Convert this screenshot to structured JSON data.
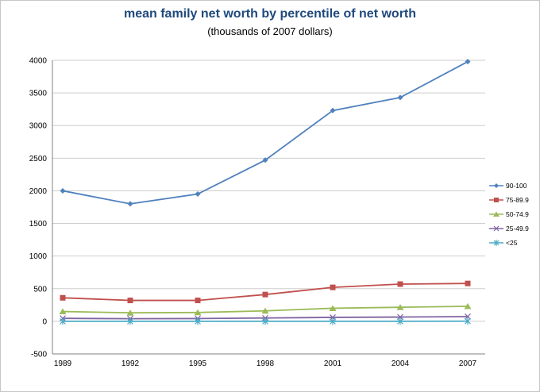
{
  "chart_data": {
    "type": "line",
    "title": "mean family net worth by percentile of net worth",
    "subtitle": "(thousands of 2007 dollars)",
    "xlabel": "",
    "ylabel": "",
    "categories": [
      "1989",
      "1992",
      "1995",
      "1998",
      "2001",
      "2004",
      "2007"
    ],
    "series": [
      {
        "name": "90-100",
        "color": "#4F81BD",
        "marker": "diamond",
        "values": [
          2000,
          1800,
          1950,
          2470,
          3230,
          3430,
          3980
        ]
      },
      {
        "name": "75-89.9",
        "color": "#C0504D",
        "marker": "square",
        "values": [
          360,
          320,
          320,
          410,
          520,
          570,
          580
        ]
      },
      {
        "name": "50-74.9",
        "color": "#9BBB59",
        "marker": "triangle",
        "values": [
          150,
          130,
          135,
          160,
          200,
          215,
          230
        ]
      },
      {
        "name": "25-49.9",
        "color": "#8064A2",
        "marker": "x",
        "values": [
          45,
          40,
          42,
          50,
          60,
          65,
          72
        ]
      },
      {
        "name": "<25",
        "color": "#4BACC6",
        "marker": "star",
        "values": [
          0,
          0,
          0,
          0,
          0,
          0,
          2
        ]
      }
    ],
    "ylim": [
      -500,
      4000
    ],
    "ytick_step": 500,
    "grid": true,
    "legend_position": "right",
    "colors": {
      "title_text": "#1F497D",
      "gridline": "#CDCDCD",
      "axis_line": "#808080",
      "tick_text": "#000000"
    }
  }
}
